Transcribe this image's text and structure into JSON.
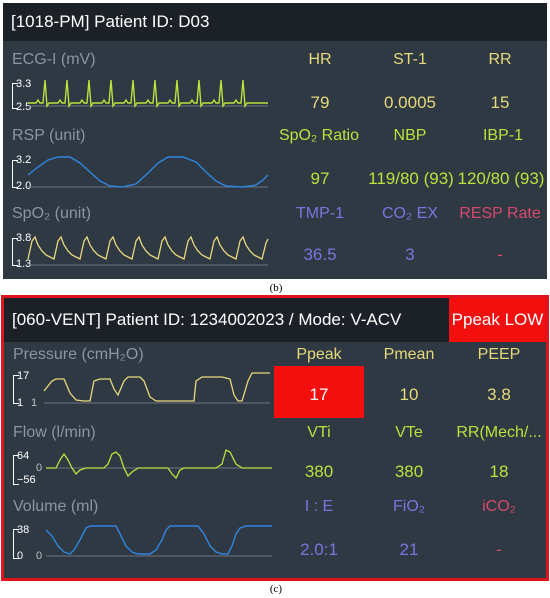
{
  "panel1": {
    "title": "[1018-PM] Patient ID: D03",
    "caption": "(b)",
    "rows": [
      {
        "wave_label": "ECG-I (mV)",
        "scale_top": "3.3",
        "scale_bottom": "2.5",
        "params": [
          {
            "label": "HR",
            "value": "79"
          },
          {
            "label": "ST-1",
            "value": "0.0005"
          },
          {
            "label": "RR",
            "value": "15"
          }
        ]
      },
      {
        "wave_label": "RSP (unit)",
        "scale_top": "3.2",
        "scale_bottom": "2.0",
        "params": [
          {
            "label": "SpO₂ Ratio",
            "value": "97"
          },
          {
            "label": "NBP",
            "value": "119/80 (93)"
          },
          {
            "label": "IBP-1",
            "value": "120/80 (93)"
          }
        ]
      },
      {
        "wave_label": "SpO₂ (unit)",
        "scale_top": "3.8",
        "scale_bottom": "1.3",
        "params": [
          {
            "label": "TMP-1",
            "value": "36.5"
          },
          {
            "label": "CO₂ EX",
            "value": "3"
          },
          {
            "label": "RESP Rate",
            "value": "-"
          }
        ]
      }
    ]
  },
  "panel2": {
    "title": "[060-VENT] Patient ID: 1234002023 / Mode: V-ACV",
    "alarm": "Ppeak LOW",
    "caption": "(c)",
    "rows": [
      {
        "wave_label": "Pressure (cmH₂O)",
        "scale_top": "17",
        "scale_bottom": "1",
        "scale_mid": "1",
        "params": [
          {
            "label": "Ppeak",
            "value": "17"
          },
          {
            "label": "Pmean",
            "value": "10"
          },
          {
            "label": "PEEP",
            "value": "3.8"
          }
        ]
      },
      {
        "wave_label": "Flow (l/min)",
        "scale_top": "64",
        "scale_mid": "0",
        "scale_bottom": "−56",
        "params": [
          {
            "label": "VTi",
            "value": "380"
          },
          {
            "label": "VTe",
            "value": "380"
          },
          {
            "label": "RR(Mech/...",
            "value": "18"
          }
        ]
      },
      {
        "wave_label": "Volume (ml)",
        "scale_top": "38",
        "scale_bottom": "0",
        "scale_mid": "0",
        "params": [
          {
            "label": "I : E",
            "value": "2.0:1"
          },
          {
            "label": "FiO₂",
            "value": "21"
          },
          {
            "label": "iCO₂",
            "value": "-"
          }
        ]
      }
    ]
  },
  "colors": {
    "yellow": "#e7d87a",
    "green": "#b9e33a",
    "purple": "#7b74e0",
    "pink": "#d6486b",
    "blue": "#2f86e0",
    "alarm": "#f40f0f",
    "panel": "#2f3944",
    "header": "#1c2127"
  }
}
